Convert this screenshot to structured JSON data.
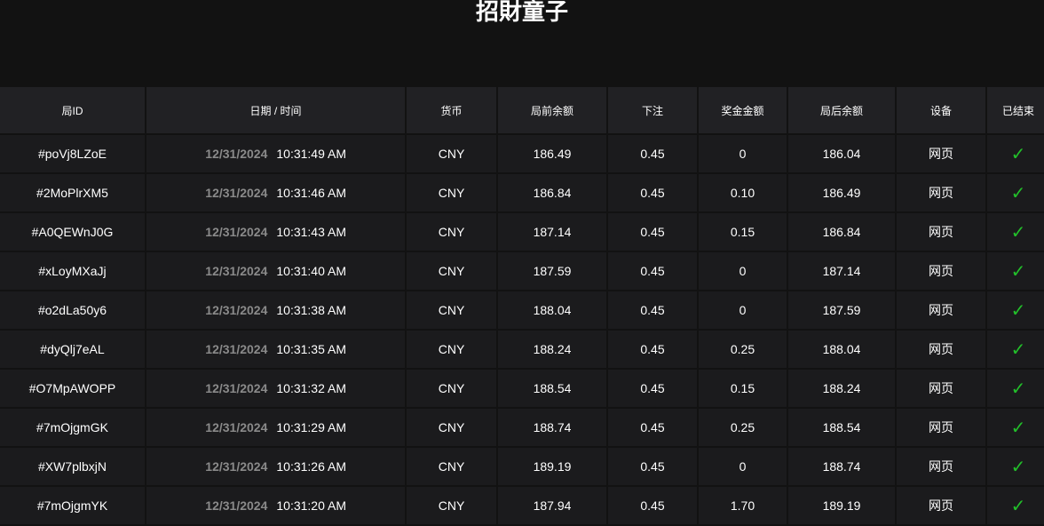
{
  "title": "招財童子",
  "columns": [
    "局ID",
    "日期 / 时间",
    "货币",
    "局前余额",
    "下注",
    "奖金金额",
    "局后余额",
    "设备",
    "已结束"
  ],
  "rows": [
    {
      "id": "#poVj8LZoE",
      "date": "12/31/2024",
      "time": "10:31:49 AM",
      "currency": "CNY",
      "before": "186.49",
      "bet": "0.45",
      "win": "0",
      "after": "186.04",
      "device": "网页",
      "finished": true
    },
    {
      "id": "#2MoPlrXM5",
      "date": "12/31/2024",
      "time": "10:31:46 AM",
      "currency": "CNY",
      "before": "186.84",
      "bet": "0.45",
      "win": "0.10",
      "after": "186.49",
      "device": "网页",
      "finished": true
    },
    {
      "id": "#A0QEWnJ0G",
      "date": "12/31/2024",
      "time": "10:31:43 AM",
      "currency": "CNY",
      "before": "187.14",
      "bet": "0.45",
      "win": "0.15",
      "after": "186.84",
      "device": "网页",
      "finished": true
    },
    {
      "id": "#xLoyMXaJj",
      "date": "12/31/2024",
      "time": "10:31:40 AM",
      "currency": "CNY",
      "before": "187.59",
      "bet": "0.45",
      "win": "0",
      "after": "187.14",
      "device": "网页",
      "finished": true
    },
    {
      "id": "#o2dLa50y6",
      "date": "12/31/2024",
      "time": "10:31:38 AM",
      "currency": "CNY",
      "before": "188.04",
      "bet": "0.45",
      "win": "0",
      "after": "187.59",
      "device": "网页",
      "finished": true
    },
    {
      "id": "#dyQlj7eAL",
      "date": "12/31/2024",
      "time": "10:31:35 AM",
      "currency": "CNY",
      "before": "188.24",
      "bet": "0.45",
      "win": "0.25",
      "after": "188.04",
      "device": "网页",
      "finished": true
    },
    {
      "id": "#O7MpAWOPP",
      "date": "12/31/2024",
      "time": "10:31:32 AM",
      "currency": "CNY",
      "before": "188.54",
      "bet": "0.45",
      "win": "0.15",
      "after": "188.24",
      "device": "网页",
      "finished": true
    },
    {
      "id": "#7mOjgmGK",
      "date": "12/31/2024",
      "time": "10:31:29 AM",
      "currency": "CNY",
      "before": "188.74",
      "bet": "0.45",
      "win": "0.25",
      "after": "188.54",
      "device": "网页",
      "finished": true
    },
    {
      "id": "#XW7plbxjN",
      "date": "12/31/2024",
      "time": "10:31:26 AM",
      "currency": "CNY",
      "before": "189.19",
      "bet": "0.45",
      "win": "0",
      "after": "188.74",
      "device": "网页",
      "finished": true
    },
    {
      "id": "#7mOjgmYK",
      "date": "12/31/2024",
      "time": "10:31:20 AM",
      "currency": "CNY",
      "before": "187.94",
      "bet": "0.45",
      "win": "1.70",
      "after": "189.19",
      "device": "网页",
      "finished": true
    }
  ],
  "colors": {
    "check": "#22c02a",
    "header_bg": "#212124",
    "row_bg": "#1b1b1d"
  },
  "icons": {
    "finished": "check-icon"
  }
}
